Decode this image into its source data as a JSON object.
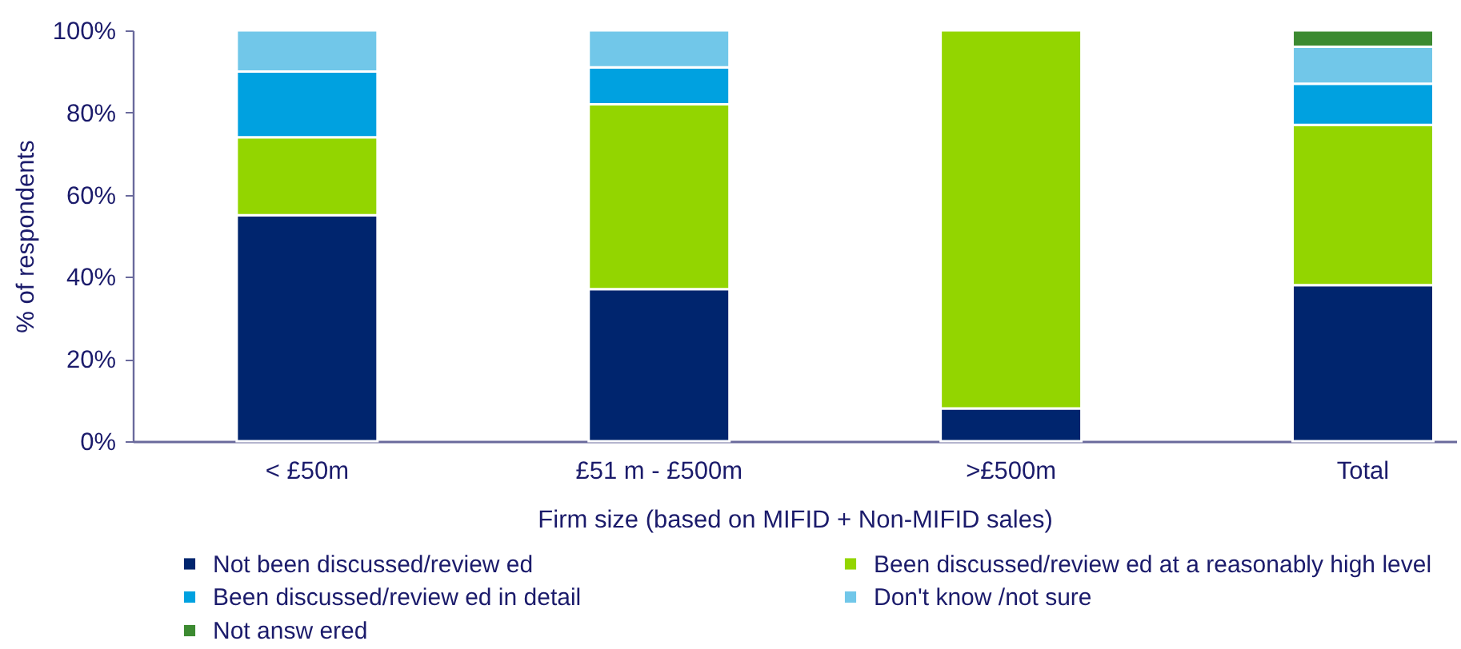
{
  "chart_data": {
    "type": "bar",
    "stacked": true,
    "xlabel": "Firm size (based on MIFID + Non-MIFID sales)",
    "ylabel": "% of respondents",
    "categories": [
      "< £50m",
      "£51 m - £500m",
      ">£500m",
      "Total"
    ],
    "series": [
      {
        "name": "Not been discussed/review ed",
        "color": "#00256e",
        "values": [
          55,
          37,
          8,
          38
        ]
      },
      {
        "name": "Been discussed/review ed at a reasonably high level",
        "color": "#93d500",
        "values": [
          19,
          45,
          92,
          39
        ]
      },
      {
        "name": "Been discussed/review ed in detail",
        "color": "#00a1e0",
        "values": [
          16,
          9,
          null,
          10
        ]
      },
      {
        "name": "Don't know /not sure",
        "color": "#71c7e9",
        "values": [
          10,
          9,
          null,
          9
        ]
      },
      {
        "name": "Not answ ered",
        "color": "#3c8a31",
        "values": [
          null,
          null,
          null,
          4
        ]
      }
    ],
    "ylim": [
      0,
      100
    ],
    "yticks": [
      {
        "value": 0,
        "label": "0%"
      },
      {
        "value": 20,
        "label": "20%"
      },
      {
        "value": 40,
        "label": "40%"
      },
      {
        "value": 60,
        "label": "60%"
      },
      {
        "value": 80,
        "label": "80%"
      },
      {
        "value": 100,
        "label": "100%"
      }
    ],
    "legend": "bottom"
  }
}
